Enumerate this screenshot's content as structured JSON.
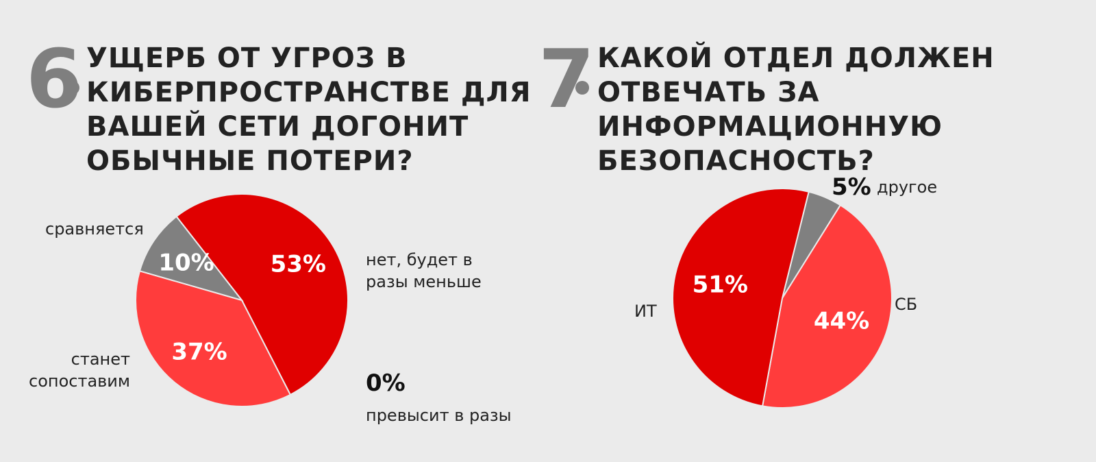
{
  "questions": [
    {
      "number": "6",
      "title_lines": [
        "УЩЕРБ ОТ УГРОЗ В",
        "КИБЕРПРОСТРАНСТВЕ ДЛЯ",
        "ВАШЕЙ СЕТИ ДОГОНИТ",
        "ОБЫЧНЫЕ ПОТЕРИ?"
      ],
      "category_labels": {
        "no": [
          "нет, будет в",
          "разы меньше"
        ],
        "comparable": [
          "станет",
          "сопоставим"
        ],
        "equal": [
          "сравняется"
        ],
        "exceed_pct": "0%",
        "exceed": [
          "превысит в разы"
        ]
      }
    },
    {
      "number": "7",
      "title_lines": [
        "КАКОЙ ОТДЕЛ ДОЛЖЕН",
        "ОТВЕЧАТЬ ЗА",
        "ИНФОРМАЦИОННУЮ",
        "БЕЗОПАСНОСТЬ?"
      ],
      "category_labels": {
        "it": "ИТ",
        "sb": "СБ",
        "other_pct": "5%",
        "other": "другое"
      }
    }
  ],
  "chart_data": [
    {
      "type": "pie",
      "title": "УЩЕРБ ОТ УГРОЗ В КИБЕРПРОСТРАНСТВЕ ДЛЯ ВАШЕЙ СЕТИ ДОГОНИТ ОБЫЧНЫЕ ПОТЕРИ?",
      "slices": [
        {
          "label": "нет, будет в разы меньше",
          "value": 53,
          "display": "53%",
          "color": "#e00000"
        },
        {
          "label": "станет сопоставим",
          "value": 37,
          "display": "37%",
          "color": "#ff3c3c"
        },
        {
          "label": "сравняется",
          "value": 10,
          "display": "10%",
          "color": "#808080"
        },
        {
          "label": "превысит в разы",
          "value": 0,
          "display": "0%",
          "color": "#111111"
        }
      ]
    },
    {
      "type": "pie",
      "title": "КАКОЙ ОТДЕЛ ДОЛЖЕН ОТВЕЧАТЬ ЗА ИНФОРМАЦИОННУЮ БЕЗОПАСНОСТЬ?",
      "slices": [
        {
          "label": "другое",
          "value": 5,
          "display": "5%",
          "color": "#808080"
        },
        {
          "label": "СБ",
          "value": 44,
          "display": "44%",
          "color": "#ff3c3c"
        },
        {
          "label": "ИТ",
          "value": 51,
          "display": "51%",
          "color": "#e00000"
        }
      ]
    }
  ]
}
